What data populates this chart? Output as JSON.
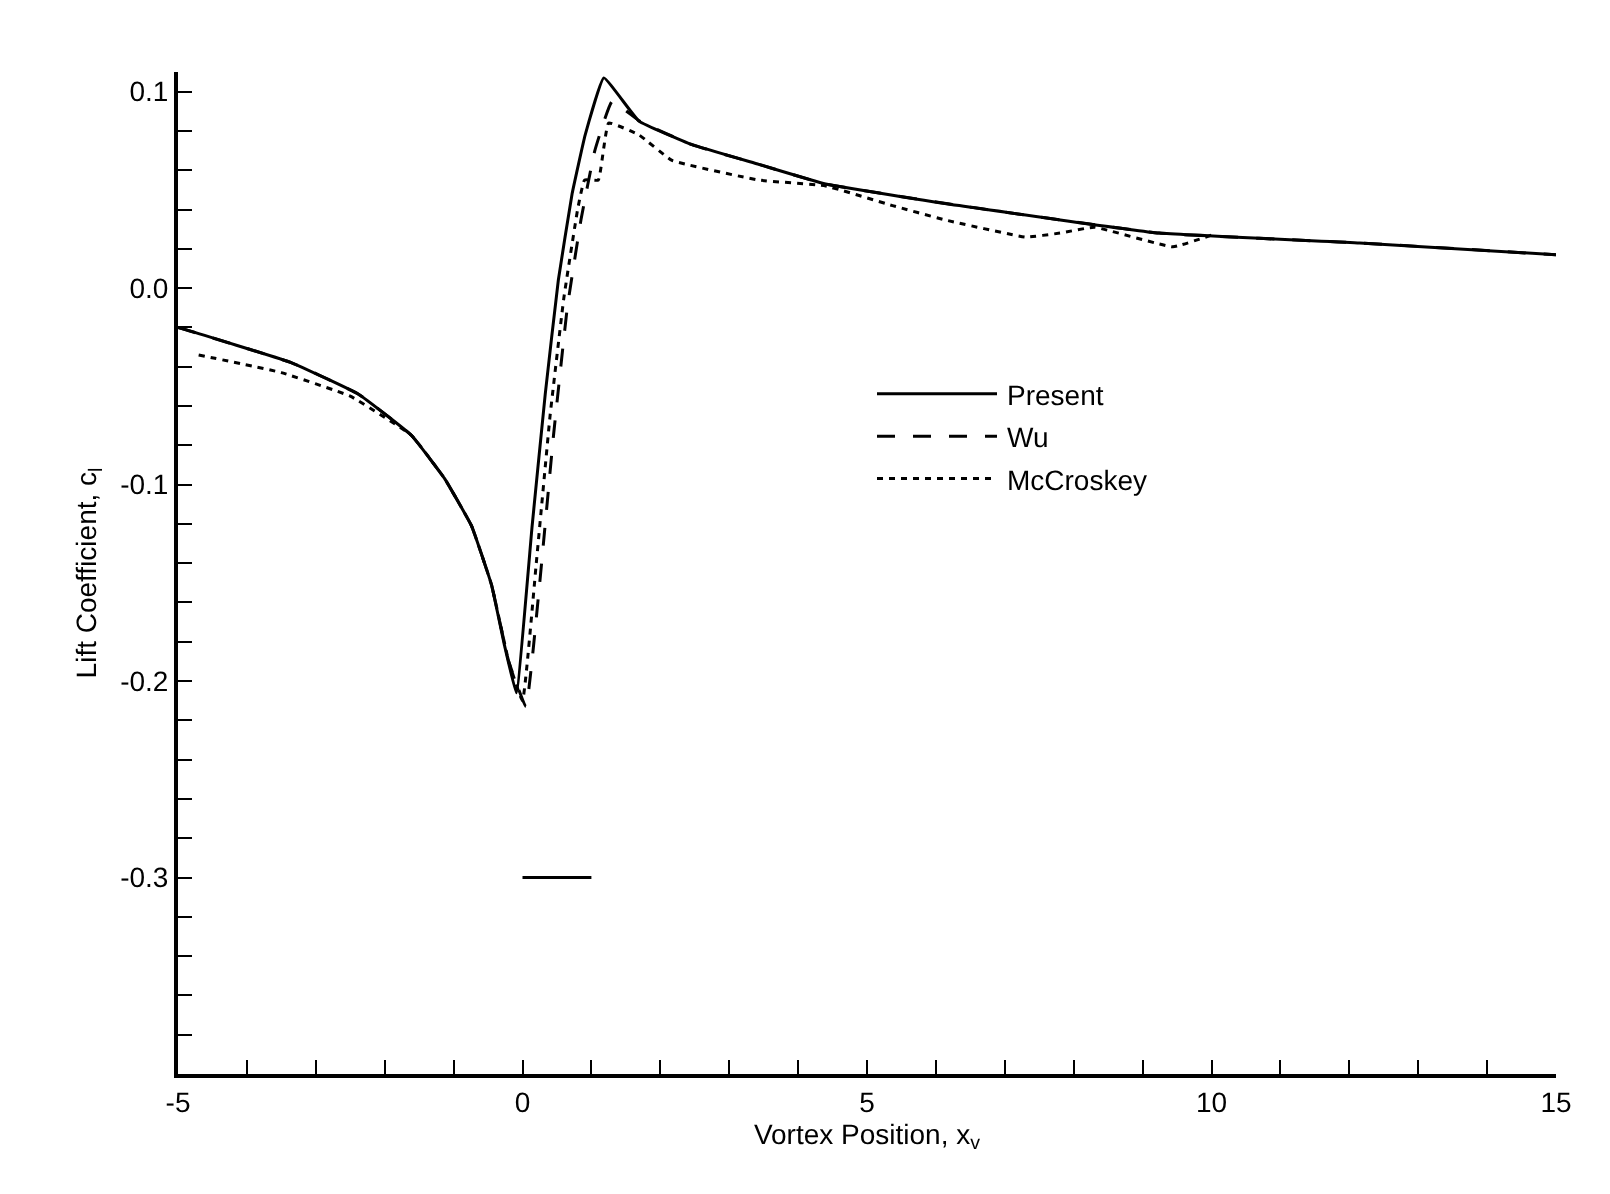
{
  "chart_data": {
    "type": "line",
    "xlabel": "Vortex Position, x$_{v}$",
    "ylabel": "Lift Coefficient, c$_{l}$",
    "xlim": [
      -5,
      15
    ],
    "ylim": [
      -0.4,
      0.11
    ],
    "xticks": [
      -5,
      {
        "value": -4,
        "label": null
      },
      {
        "value": -3,
        "label": null
      },
      {
        "value": -2,
        "label": null
      },
      {
        "value": -1,
        "label": null
      },
      0,
      {
        "value": 1,
        "label": null
      },
      {
        "value": 2,
        "label": null
      },
      {
        "value": 3,
        "label": null
      },
      {
        "value": 4,
        "label": null
      },
      5,
      {
        "value": 6,
        "label": null
      },
      {
        "value": 7,
        "label": null
      },
      {
        "value": 8,
        "label": null
      },
      {
        "value": 9,
        "label": null
      },
      10,
      {
        "value": 11,
        "label": null
      },
      {
        "value": 12,
        "label": null
      },
      {
        "value": 13,
        "label": null
      },
      {
        "value": 14,
        "label": null
      },
      15
    ],
    "yticks": [
      {
        "value": -0.4,
        "label": null
      },
      {
        "value": -0.38,
        "label": null
      },
      {
        "value": -0.36,
        "label": null
      },
      {
        "value": -0.34,
        "label": null
      },
      {
        "value": -0.32,
        "label": null
      },
      {
        "value": -0.3,
        "label": "-0.3"
      },
      {
        "value": -0.28,
        "label": null
      },
      {
        "value": -0.26,
        "label": null
      },
      {
        "value": -0.24,
        "label": null
      },
      {
        "value": -0.22,
        "label": null
      },
      {
        "value": -0.2,
        "label": "-0.2"
      },
      {
        "value": -0.18,
        "label": null
      },
      {
        "value": -0.16,
        "label": null
      },
      {
        "value": -0.14,
        "label": null
      },
      {
        "value": -0.12,
        "label": null
      },
      {
        "value": -0.1,
        "label": "-0.1"
      },
      {
        "value": -0.08,
        "label": null
      },
      {
        "value": -0.06,
        "label": null
      },
      {
        "value": -0.04,
        "label": null
      },
      {
        "value": -0.02,
        "label": null
      },
      {
        "value": 0.0,
        "label": "0.0"
      },
      {
        "value": 0.02,
        "label": null
      },
      {
        "value": 0.04,
        "label": null
      },
      {
        "value": 0.06,
        "label": null
      },
      {
        "value": 0.08,
        "label": null
      },
      {
        "value": 0.1,
        "label": "0.1"
      }
    ],
    "legend": "right",
    "marker": "none",
    "series": [
      {
        "name": "Present",
        "color": "#000000",
        "line_style": "solid",
        "x": [
          -5,
          -4.9,
          -3.35,
          -2.38,
          -1.61,
          -1.13,
          -0.74,
          -0.45,
          -0.26,
          -0.09,
          0.14,
          0.33,
          0.52,
          0.72,
          0.91,
          1.18,
          1.69,
          2.46,
          3.43,
          4.4,
          6.34,
          9.24,
          12.15,
          15
        ],
        "values": [
          -0.02,
          -0.021,
          -0.038,
          -0.054,
          -0.075,
          -0.097,
          -0.121,
          -0.151,
          -0.182,
          -0.206,
          -0.121,
          -0.054,
          0.004,
          0.048,
          0.078,
          0.107,
          0.085,
          0.073,
          0.063,
          0.053,
          0.042,
          0.028,
          0.023,
          0.017
        ]
      },
      {
        "name": "Wu",
        "color": "#000000",
        "line_style": "dashed",
        "x": [
          -5,
          -3.35,
          -2.38,
          -1.61,
          -1.13,
          -0.74,
          -0.45,
          -0.2,
          0.05,
          0.25,
          0.45,
          0.65,
          0.85,
          1.05,
          1.3,
          1.7,
          2.46,
          3.43,
          4.4,
          6.34,
          9.24,
          12.15,
          15
        ],
        "values": [
          -0.02,
          -0.038,
          -0.054,
          -0.075,
          -0.097,
          -0.121,
          -0.151,
          -0.19,
          -0.213,
          -0.15,
          -0.075,
          -0.01,
          0.035,
          0.07,
          0.095,
          0.085,
          0.073,
          0.063,
          0.053,
          0.042,
          0.028,
          0.023,
          0.017
        ]
      },
      {
        "name": "McCroskey",
        "color": "#000000",
        "line_style": "dotted",
        "x": [
          -4.7,
          -3.5,
          -2.5,
          -1.61,
          -1.13,
          -0.74,
          -0.45,
          -0.2,
          0.0,
          0.2,
          0.4,
          0.6,
          0.8,
          0.9,
          1.1,
          1.25,
          1.69,
          2.17,
          3.43,
          4.4,
          5.37,
          6.1,
          7.3,
          7.8,
          8.3,
          9.44,
          10.0
        ],
        "values": [
          -0.034,
          -0.043,
          -0.055,
          -0.075,
          -0.097,
          -0.121,
          -0.151,
          -0.19,
          -0.21,
          -0.14,
          -0.065,
          -0.005,
          0.04,
          0.055,
          0.055,
          0.084,
          0.078,
          0.065,
          0.055,
          0.052,
          0.042,
          0.035,
          0.026,
          0.028,
          0.031,
          0.021,
          0.027
        ]
      },
      {
        "color": "#000000",
        "line_style": "solid",
        "x": [
          0,
          1.0
        ],
        "values": [
          -0.3,
          -0.3
        ]
      }
    ]
  }
}
